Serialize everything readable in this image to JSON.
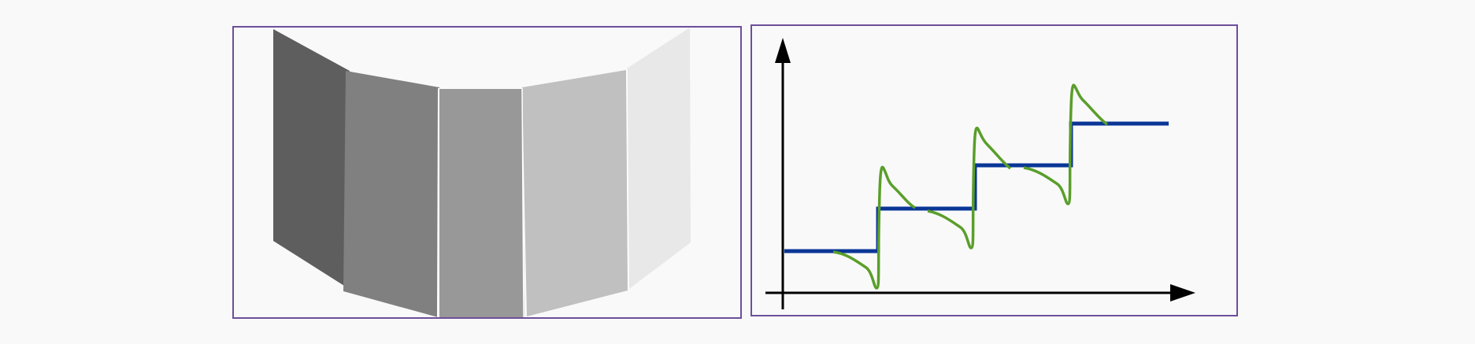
{
  "colors": {
    "background": "#f9f9f9",
    "frame": "#6d4f9a",
    "panel_1": "#5e5e5e",
    "panel_2": "#808080",
    "panel_3": "#989898",
    "panel_4": "#c0c0c0",
    "panel_5": "#e8e8e8",
    "axis": "#000000",
    "staircase": "#0a3696",
    "response": "#5a9e2a"
  },
  "left_figure": {
    "panels": [
      "panel_1",
      "panel_2",
      "panel_3",
      "panel_4",
      "panel_5"
    ]
  },
  "right_figure": {
    "staircase_steps": 4,
    "response_curve": "overshoot-and-settle"
  }
}
